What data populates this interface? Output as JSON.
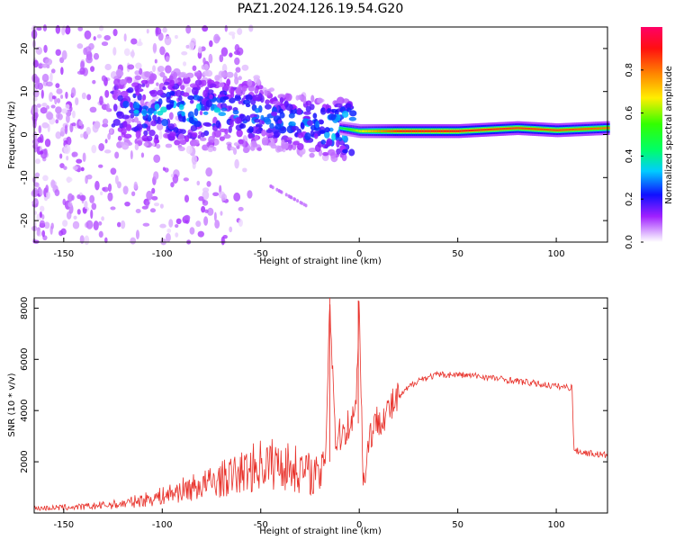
{
  "title": "PAZ1.2024.126.19.54.G20",
  "colors": {
    "snr_line": "#e8312a",
    "axis": "#000000",
    "background": "#ffffff"
  },
  "chart_data": [
    {
      "type": "heatmap",
      "xlabel": "Height of straight line (km)",
      "ylabel": "Frequency (Hz)",
      "xlim": [
        -165,
        126
      ],
      "ylim": [
        -25,
        25
      ],
      "x_ticks": [
        -150,
        -100,
        -50,
        0,
        50,
        100
      ],
      "y_ticks": [
        -20,
        -10,
        0,
        10,
        20
      ],
      "colorbar": {
        "label": "Normalized spectral amplitude",
        "range": [
          0,
          1
        ],
        "ticks": [
          "0.0",
          "0.2",
          "0.4",
          "0.6",
          "0.8"
        ],
        "colormap": "gist_rainbow (white at low values)"
      },
      "ridge": [
        {
          "x": -120,
          "f": 5.5,
          "amp": 0.3
        },
        {
          "x": -100,
          "f": 5.5,
          "amp": 0.35
        },
        {
          "x": -80,
          "f": 5.5,
          "amp": 0.35
        },
        {
          "x": -60,
          "f": 5,
          "amp": 0.3
        },
        {
          "x": -40,
          "f": 3.5,
          "amp": 0.3
        },
        {
          "x": -20,
          "f": 1.5,
          "amp": 0.35
        },
        {
          "x": -10,
          "f": 1.5,
          "amp": 0.45
        },
        {
          "x": 0,
          "f": 0.8,
          "amp": 0.65
        },
        {
          "x": 20,
          "f": 0.8,
          "amp": 0.9
        },
        {
          "x": 50,
          "f": 0.8,
          "amp": 0.9
        },
        {
          "x": 80,
          "f": 1.5,
          "amp": 0.85
        },
        {
          "x": 100,
          "f": 1.0,
          "amp": 0.85
        },
        {
          "x": 125,
          "f": 1.5,
          "amp": 0.8
        }
      ]
    },
    {
      "type": "line",
      "xlabel": "Height of straight line (km)",
      "ylabel": "SNR (10 * v/v)",
      "xlim": [
        -165,
        126
      ],
      "ylim": [
        0,
        8400
      ],
      "x_ticks": [
        -150,
        -100,
        -50,
        0,
        50,
        100
      ],
      "y_ticks": [
        2000,
        4000,
        6000,
        8000
      ],
      "series": [
        {
          "x": [
            -165,
            -140,
            -120,
            -100,
            -90,
            -80,
            -70,
            -60,
            -50,
            -40,
            -30,
            -20,
            -17,
            -15,
            -12,
            -8,
            -5,
            -2,
            0,
            2,
            5,
            10,
            15,
            20,
            25,
            30,
            40,
            50,
            60,
            70,
            80,
            90,
            95,
            100,
            108,
            109,
            115,
            126
          ],
          "y": [
            150,
            200,
            300,
            550,
            750,
            900,
            1100,
            1300,
            1600,
            1600,
            1400,
            1200,
            2500,
            8400,
            2800,
            3200,
            3500,
            3800,
            8300,
            1000,
            3000,
            3700,
            4000,
            4500,
            4900,
            5200,
            5400,
            5400,
            5350,
            5250,
            5150,
            5050,
            5000,
            4950,
            4900,
            2450,
            2350,
            2250
          ]
        }
      ]
    }
  ]
}
